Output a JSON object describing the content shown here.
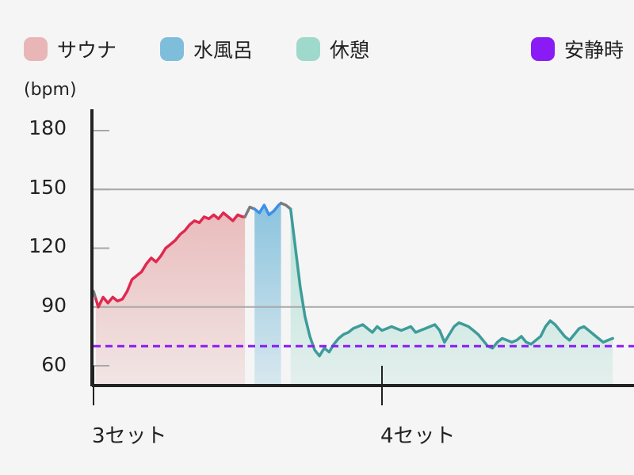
{
  "colors": {
    "sauna_fill": "#e8b6b6",
    "sauna_line": "#e0294f",
    "cold_fill": "#7fbedb",
    "cold_line": "#3d8fe8",
    "rest_fill": "#9ed9cc",
    "rest_line": "#3e9c9a",
    "transition_line": "#7b7b7b",
    "resting_line": "#8a1bf5",
    "grid": "#a8a8a8",
    "axis": "#222222"
  },
  "chart_data": {
    "type": "line",
    "ylabel": "(bpm)",
    "yticks": [
      60,
      90,
      120,
      150,
      180
    ],
    "ylim": [
      49,
      190
    ],
    "xlim": [
      0,
      108
    ],
    "xticks": [
      {
        "label": "3セット",
        "x": 0
      },
      {
        "label": "4セット",
        "x": 60
      }
    ],
    "legend": [
      {
        "key": "sauna",
        "label": "サウナ",
        "color": "#e8b6b6"
      },
      {
        "key": "cold",
        "label": "水風呂",
        "color": "#7fbedb"
      },
      {
        "key": "rest",
        "label": "休憩",
        "color": "#9ed9cc"
      },
      {
        "key": "resting",
        "label": "安静時",
        "color": "#8a1bf5"
      }
    ],
    "gridlines": [
      90,
      150
    ],
    "resting_hr": 70,
    "series": [
      {
        "phase": "transition",
        "points": [
          [
            0,
            98
          ],
          [
            0.5,
            94
          ]
        ]
      },
      {
        "phase": "sauna",
        "points": [
          [
            0.5,
            94
          ],
          [
            1,
            90
          ],
          [
            2,
            95
          ],
          [
            3,
            92
          ],
          [
            4,
            95
          ],
          [
            5,
            93
          ],
          [
            6,
            94
          ],
          [
            7,
            98
          ],
          [
            8,
            104
          ],
          [
            9,
            106
          ],
          [
            10,
            108
          ],
          [
            11,
            112
          ],
          [
            12,
            115
          ],
          [
            13,
            113
          ],
          [
            14,
            116
          ],
          [
            15,
            120
          ],
          [
            16,
            122
          ],
          [
            17,
            124
          ],
          [
            18,
            127
          ],
          [
            19,
            129
          ],
          [
            20,
            132
          ],
          [
            21,
            134
          ],
          [
            22,
            133
          ],
          [
            23,
            136
          ],
          [
            24,
            135
          ],
          [
            25,
            137
          ],
          [
            26,
            135
          ],
          [
            27,
            138
          ],
          [
            28,
            136
          ],
          [
            29,
            134
          ],
          [
            30,
            137
          ],
          [
            31,
            136
          ],
          [
            31.5,
            136
          ]
        ]
      },
      {
        "phase": "transition",
        "points": [
          [
            31.5,
            136
          ],
          [
            32.5,
            141
          ],
          [
            33.5,
            140
          ]
        ]
      },
      {
        "phase": "cold",
        "points": [
          [
            33.5,
            140
          ],
          [
            34.5,
            138
          ],
          [
            35.5,
            142
          ],
          [
            36.5,
            137
          ],
          [
            37.5,
            139
          ],
          [
            38.5,
            142
          ],
          [
            39,
            143
          ]
        ]
      },
      {
        "phase": "transition",
        "points": [
          [
            39,
            143
          ],
          [
            40,
            142
          ],
          [
            41,
            140
          ]
        ]
      },
      {
        "phase": "rest",
        "points": [
          [
            41,
            140
          ],
          [
            42,
            120
          ],
          [
            43,
            100
          ],
          [
            44,
            85
          ],
          [
            45,
            75
          ],
          [
            46,
            68
          ],
          [
            47,
            65
          ],
          [
            48,
            69
          ],
          [
            49,
            67
          ],
          [
            50,
            71
          ],
          [
            51,
            74
          ],
          [
            52,
            76
          ],
          [
            53,
            77
          ],
          [
            54,
            79
          ],
          [
            55,
            80
          ],
          [
            56,
            81
          ],
          [
            57,
            79
          ],
          [
            58,
            77
          ],
          [
            59,
            80
          ],
          [
            60,
            78
          ],
          [
            61,
            79
          ],
          [
            62,
            80
          ],
          [
            63,
            79
          ],
          [
            64,
            78
          ],
          [
            65,
            79
          ],
          [
            66,
            80
          ],
          [
            67,
            77
          ],
          [
            68,
            78
          ],
          [
            69,
            79
          ],
          [
            70,
            80
          ],
          [
            71,
            81
          ],
          [
            72,
            78
          ],
          [
            73,
            72
          ],
          [
            74,
            76
          ],
          [
            75,
            80
          ],
          [
            76,
            82
          ],
          [
            77,
            81
          ],
          [
            78,
            80
          ],
          [
            79,
            78
          ],
          [
            80,
            76
          ],
          [
            81,
            73
          ],
          [
            82,
            70
          ],
          [
            83,
            69
          ],
          [
            84,
            72
          ],
          [
            85,
            74
          ],
          [
            86,
            73
          ],
          [
            87,
            72
          ],
          [
            88,
            73
          ],
          [
            89,
            75
          ],
          [
            90,
            72
          ],
          [
            91,
            71
          ],
          [
            92,
            73
          ],
          [
            93,
            75
          ],
          [
            94,
            80
          ],
          [
            95,
            83
          ],
          [
            96,
            81
          ],
          [
            97,
            78
          ],
          [
            98,
            75
          ],
          [
            99,
            73
          ],
          [
            100,
            76
          ],
          [
            101,
            79
          ],
          [
            102,
            80
          ],
          [
            103,
            78
          ],
          [
            104,
            76
          ],
          [
            105,
            74
          ],
          [
            106,
            72
          ],
          [
            107,
            73
          ],
          [
            108,
            74
          ]
        ]
      }
    ]
  }
}
